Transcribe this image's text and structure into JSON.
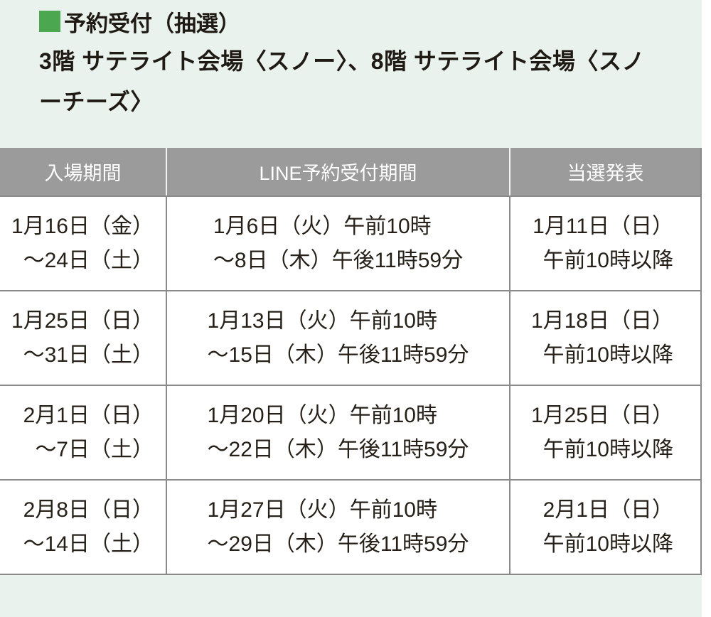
{
  "colors": {
    "panel_background": "#e9f2ec",
    "bullet_green": "#4ba750",
    "header_gray": "#9b9b9b",
    "border_gray": "#8a8a8a",
    "body_text": "#262019",
    "header_text": "#ffffff"
  },
  "heading": {
    "bullet_icon": "green-square",
    "title": "予約受付（抽選）",
    "subtitle_lines": [
      "3階 サテライト会場〈スノー〉、8階 サテライト会場〈スノ",
      "ーチーズ〉"
    ]
  },
  "table": {
    "columns": [
      "入場期間",
      "LINE予約受付期間",
      "当選発表"
    ],
    "rows": [
      {
        "entry": [
          "1月16日（金）",
          "～24日（土）"
        ],
        "reservation": [
          "1月6日（火）午前10時",
          "～8日（木）午後11時59分"
        ],
        "announcement": [
          "1月11日（日）",
          "午前10時以降"
        ]
      },
      {
        "entry": [
          "1月25日（日）",
          "～31日（土）"
        ],
        "reservation": [
          "1月13日（火）午前10時",
          "～15日（木）午後11時59分"
        ],
        "announcement": [
          "1月18日（日）",
          "午前10時以降"
        ]
      },
      {
        "entry": [
          "2月1日（日）",
          "～7日（土）"
        ],
        "reservation": [
          "1月20日（火）午前10時",
          "～22日（木）午後11時59分"
        ],
        "announcement": [
          "1月25日（日）",
          "午前10時以降"
        ]
      },
      {
        "entry": [
          "2月8日（日）",
          "～14日（土）"
        ],
        "reservation": [
          "1月27日（火）午前10時",
          "～29日（木）午後11時59分"
        ],
        "announcement": [
          "2月1日（日）",
          "午前10時以降"
        ]
      }
    ]
  }
}
